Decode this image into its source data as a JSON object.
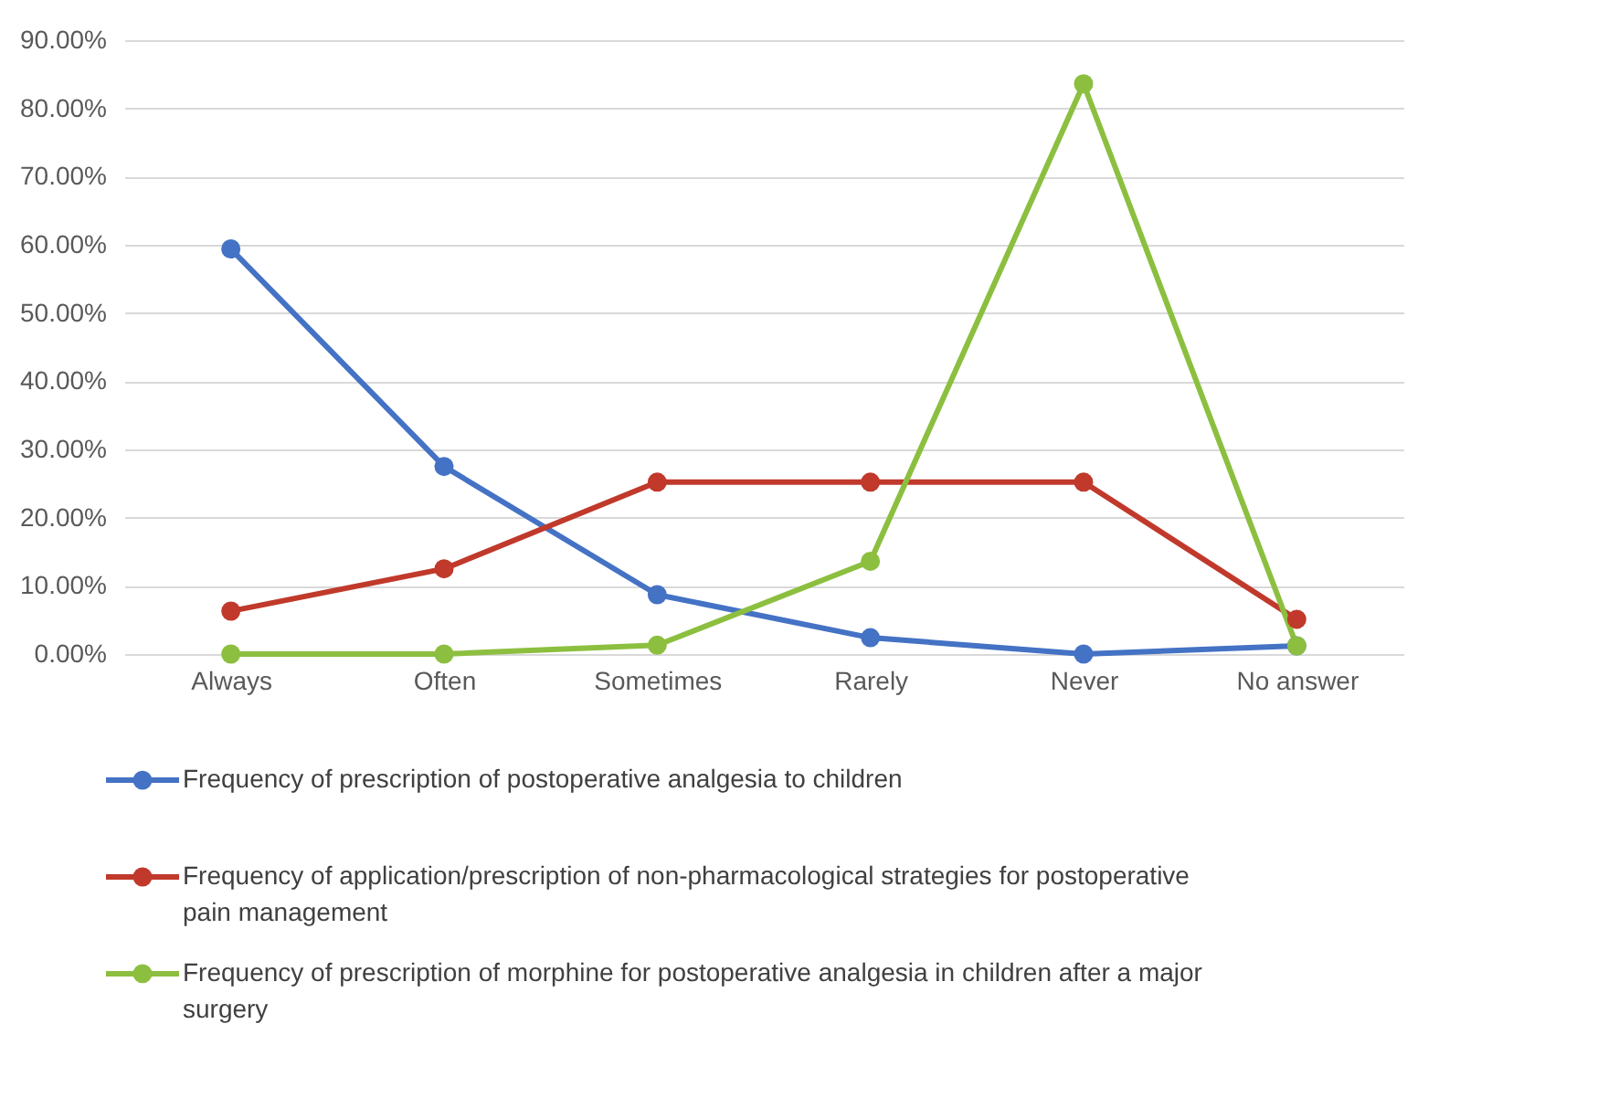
{
  "chart_data": {
    "type": "line",
    "categories": [
      "Always",
      "Often",
      "Sometimes",
      "Rarely",
      "Never",
      "No answer"
    ],
    "series": [
      {
        "name": "Frequency of prescription of postoperative analgesia to children",
        "color": "#4472c4",
        "values": [
          59.4,
          27.5,
          8.7,
          2.4,
          0,
          1.2
        ]
      },
      {
        "name": "Frequency of application/prescription of non-pharmacological strategies for postoperative pain management",
        "color": "#c0392b",
        "values": [
          6.3,
          12.5,
          25.2,
          25.2,
          25.2,
          5.1
        ]
      },
      {
        "name": "Frequency of prescription of morphine for postoperative analgesia in children after a major surgery",
        "color": "#8cbf3f",
        "values": [
          0,
          0,
          1.3,
          13.6,
          83.6,
          1.2
        ]
      }
    ],
    "ylim": [
      0,
      90
    ],
    "yticks": [
      {
        "value": 0,
        "label": "0.00%"
      },
      {
        "value": 10,
        "label": "10.00%"
      },
      {
        "value": 20,
        "label": "20.00%"
      },
      {
        "value": 30,
        "label": "30.00%"
      },
      {
        "value": 40,
        "label": "40.00%"
      },
      {
        "value": 50,
        "label": "50.00%"
      },
      {
        "value": 60,
        "label": "60.00%"
      },
      {
        "value": 70,
        "label": "70.00%"
      },
      {
        "value": 80,
        "label": "80.00%"
      },
      {
        "value": 90,
        "label": "90.00%"
      }
    ],
    "grid": "y",
    "legend": "bottom",
    "marker": "circle",
    "line_style": "solid"
  }
}
